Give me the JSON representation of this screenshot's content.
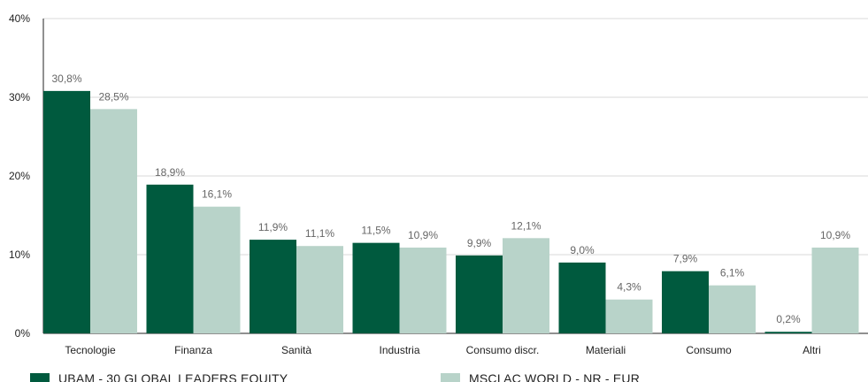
{
  "chart_data": {
    "type": "bar",
    "categories": [
      "Tecnologie",
      "Finanza",
      "Sanità",
      "Industria",
      "Consumo discr.",
      "Materiali",
      "Consumo",
      "Altri"
    ],
    "series": [
      {
        "name": "UBAM - 30 GLOBAL LEADERS EQUITY",
        "color": "#005a3e",
        "values": [
          30.8,
          18.9,
          11.9,
          11.5,
          9.9,
          9.0,
          7.9,
          0.2
        ],
        "labels": [
          "30,8%",
          "18,9%",
          "11,9%",
          "11,5%",
          "9,9%",
          "9,0%",
          "7,9%",
          "0,2%"
        ]
      },
      {
        "name": "MSCI AC WORLD - NR - EUR",
        "color": "#b8d3c9",
        "values": [
          28.5,
          16.1,
          11.1,
          10.9,
          12.1,
          4.3,
          6.1,
          10.9
        ],
        "labels": [
          "28,5%",
          "16,1%",
          "11,1%",
          "10,9%",
          "12,1%",
          "4,3%",
          "6,1%",
          "10,9%"
        ]
      }
    ],
    "y_ticks": [
      0,
      10,
      20,
      30,
      40
    ],
    "y_tick_labels": [
      "0%",
      "10%",
      "20%",
      "30%",
      "40%"
    ],
    "ylim": [
      0,
      40
    ],
    "grid": true,
    "legend_position": "bottom-left"
  }
}
